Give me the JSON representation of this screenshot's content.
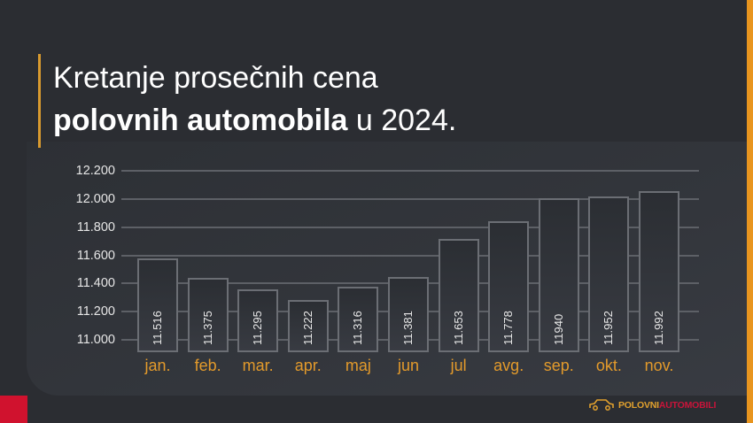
{
  "header": {
    "title_line1": "Kretanje prosečnih cena",
    "title_line2_bold": "polovnih automobila",
    "title_line2_rest": " u 2024."
  },
  "logo": {
    "part1": "POLOVNI",
    "part2": "AUTOMOBILI",
    "icon": "car-outline-icon"
  },
  "colors": {
    "accent_orange": "#e8951f",
    "accent_red": "#d0122e",
    "label_orange": "#e39a2b",
    "background": "#2b2d32"
  },
  "chart_data": {
    "type": "bar",
    "title": "Kretanje prosečnih cena polovnih automobila u 2024.",
    "xlabel": "",
    "ylabel": "",
    "ylim": [
      11000,
      12200
    ],
    "yticks": [
      "11.000",
      "11.200",
      "11.400",
      "11.600",
      "11.800",
      "12.000",
      "12.200"
    ],
    "grid": true,
    "legend": "none",
    "categories": [
      "jan.",
      "feb.",
      "mar.",
      "apr.",
      "maj",
      "jun",
      "jul",
      "avg.",
      "sep.",
      "okt.",
      "nov."
    ],
    "values": [
      11516,
      11375,
      11295,
      11222,
      11316,
      11381,
      11653,
      11778,
      11940,
      11952,
      11992
    ],
    "value_labels": [
      "11.516",
      "11.375",
      "11.295",
      "11.222",
      "11.316",
      "11.381",
      "11.653",
      "11.778",
      "11940",
      "11.952",
      "11.992"
    ]
  }
}
